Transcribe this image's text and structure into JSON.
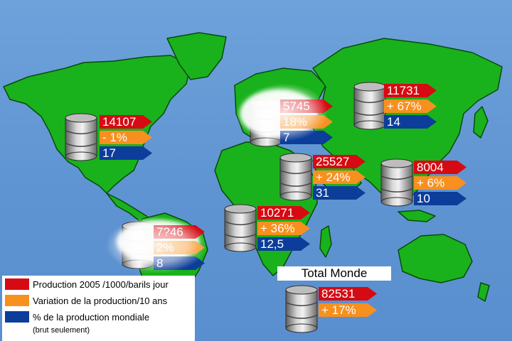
{
  "chart_data": {
    "type": "infographic-map",
    "regions": [
      {
        "production": "14107",
        "variation": "- 1%",
        "share": "17"
      },
      {
        "production": "5745",
        "variation": "18%",
        "share": "7"
      },
      {
        "production": "11731",
        "variation": "+ 67%",
        "share": "14"
      },
      {
        "production": "25527",
        "variation": "+ 24%",
        "share": "31"
      },
      {
        "production": "8004",
        "variation": "+ 6%",
        "share": "10"
      },
      {
        "production": "10271",
        "variation": "+ 36%",
        "share": "12,5"
      },
      {
        "production": "7?46",
        "variation": "2%",
        "share": "8"
      }
    ],
    "total": {
      "label": "Total Monde",
      "production": "82531",
      "variation": "+ 17%"
    },
    "legend": [
      {
        "label": "Production 2005  /1000/barils jour",
        "color": "#d60a12"
      },
      {
        "label": "Variation de la production/10 ans",
        "color": "#f7901e"
      },
      {
        "label": "% de la production mondiale",
        "color": "#0c3d9a"
      }
    ],
    "legend_note": "(brut seulement)"
  }
}
